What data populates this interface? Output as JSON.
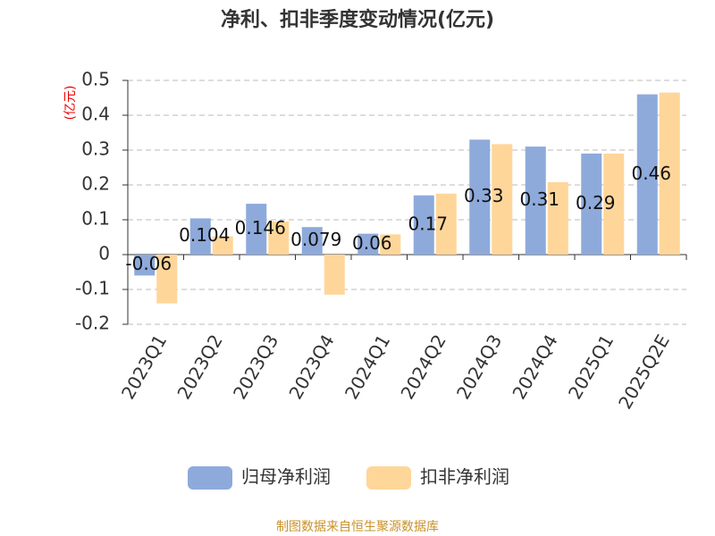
{
  "chart_data": {
    "type": "bar",
    "title": "净利、扣非季度变动情况(亿元)",
    "y_label": "(亿元)",
    "source": "制图数据来自恒生聚源数据库",
    "categories": [
      "2023Q1",
      "2023Q2",
      "2023Q3",
      "2023Q4",
      "2024Q1",
      "2024Q2",
      "2024Q3",
      "2024Q4",
      "2025Q1",
      "2025Q2E"
    ],
    "series": [
      {
        "name": "归母净利润",
        "color": "#8eaadb",
        "values": [
          -0.06,
          0.104,
          0.146,
          0.079,
          0.06,
          0.17,
          0.33,
          0.31,
          0.29,
          0.46
        ],
        "show_labels": true
      },
      {
        "name": "扣非净利润",
        "color": "#ffd699",
        "values": [
          -0.14,
          0.052,
          0.095,
          -0.115,
          0.058,
          0.175,
          0.317,
          0.208,
          0.29,
          0.465
        ]
      }
    ],
    "ylim": [
      -0.2,
      0.5
    ],
    "yticks": [
      -0.2,
      -0.1,
      0,
      0.1,
      0.2,
      0.3,
      0.4,
      0.5
    ],
    "grid": true
  }
}
